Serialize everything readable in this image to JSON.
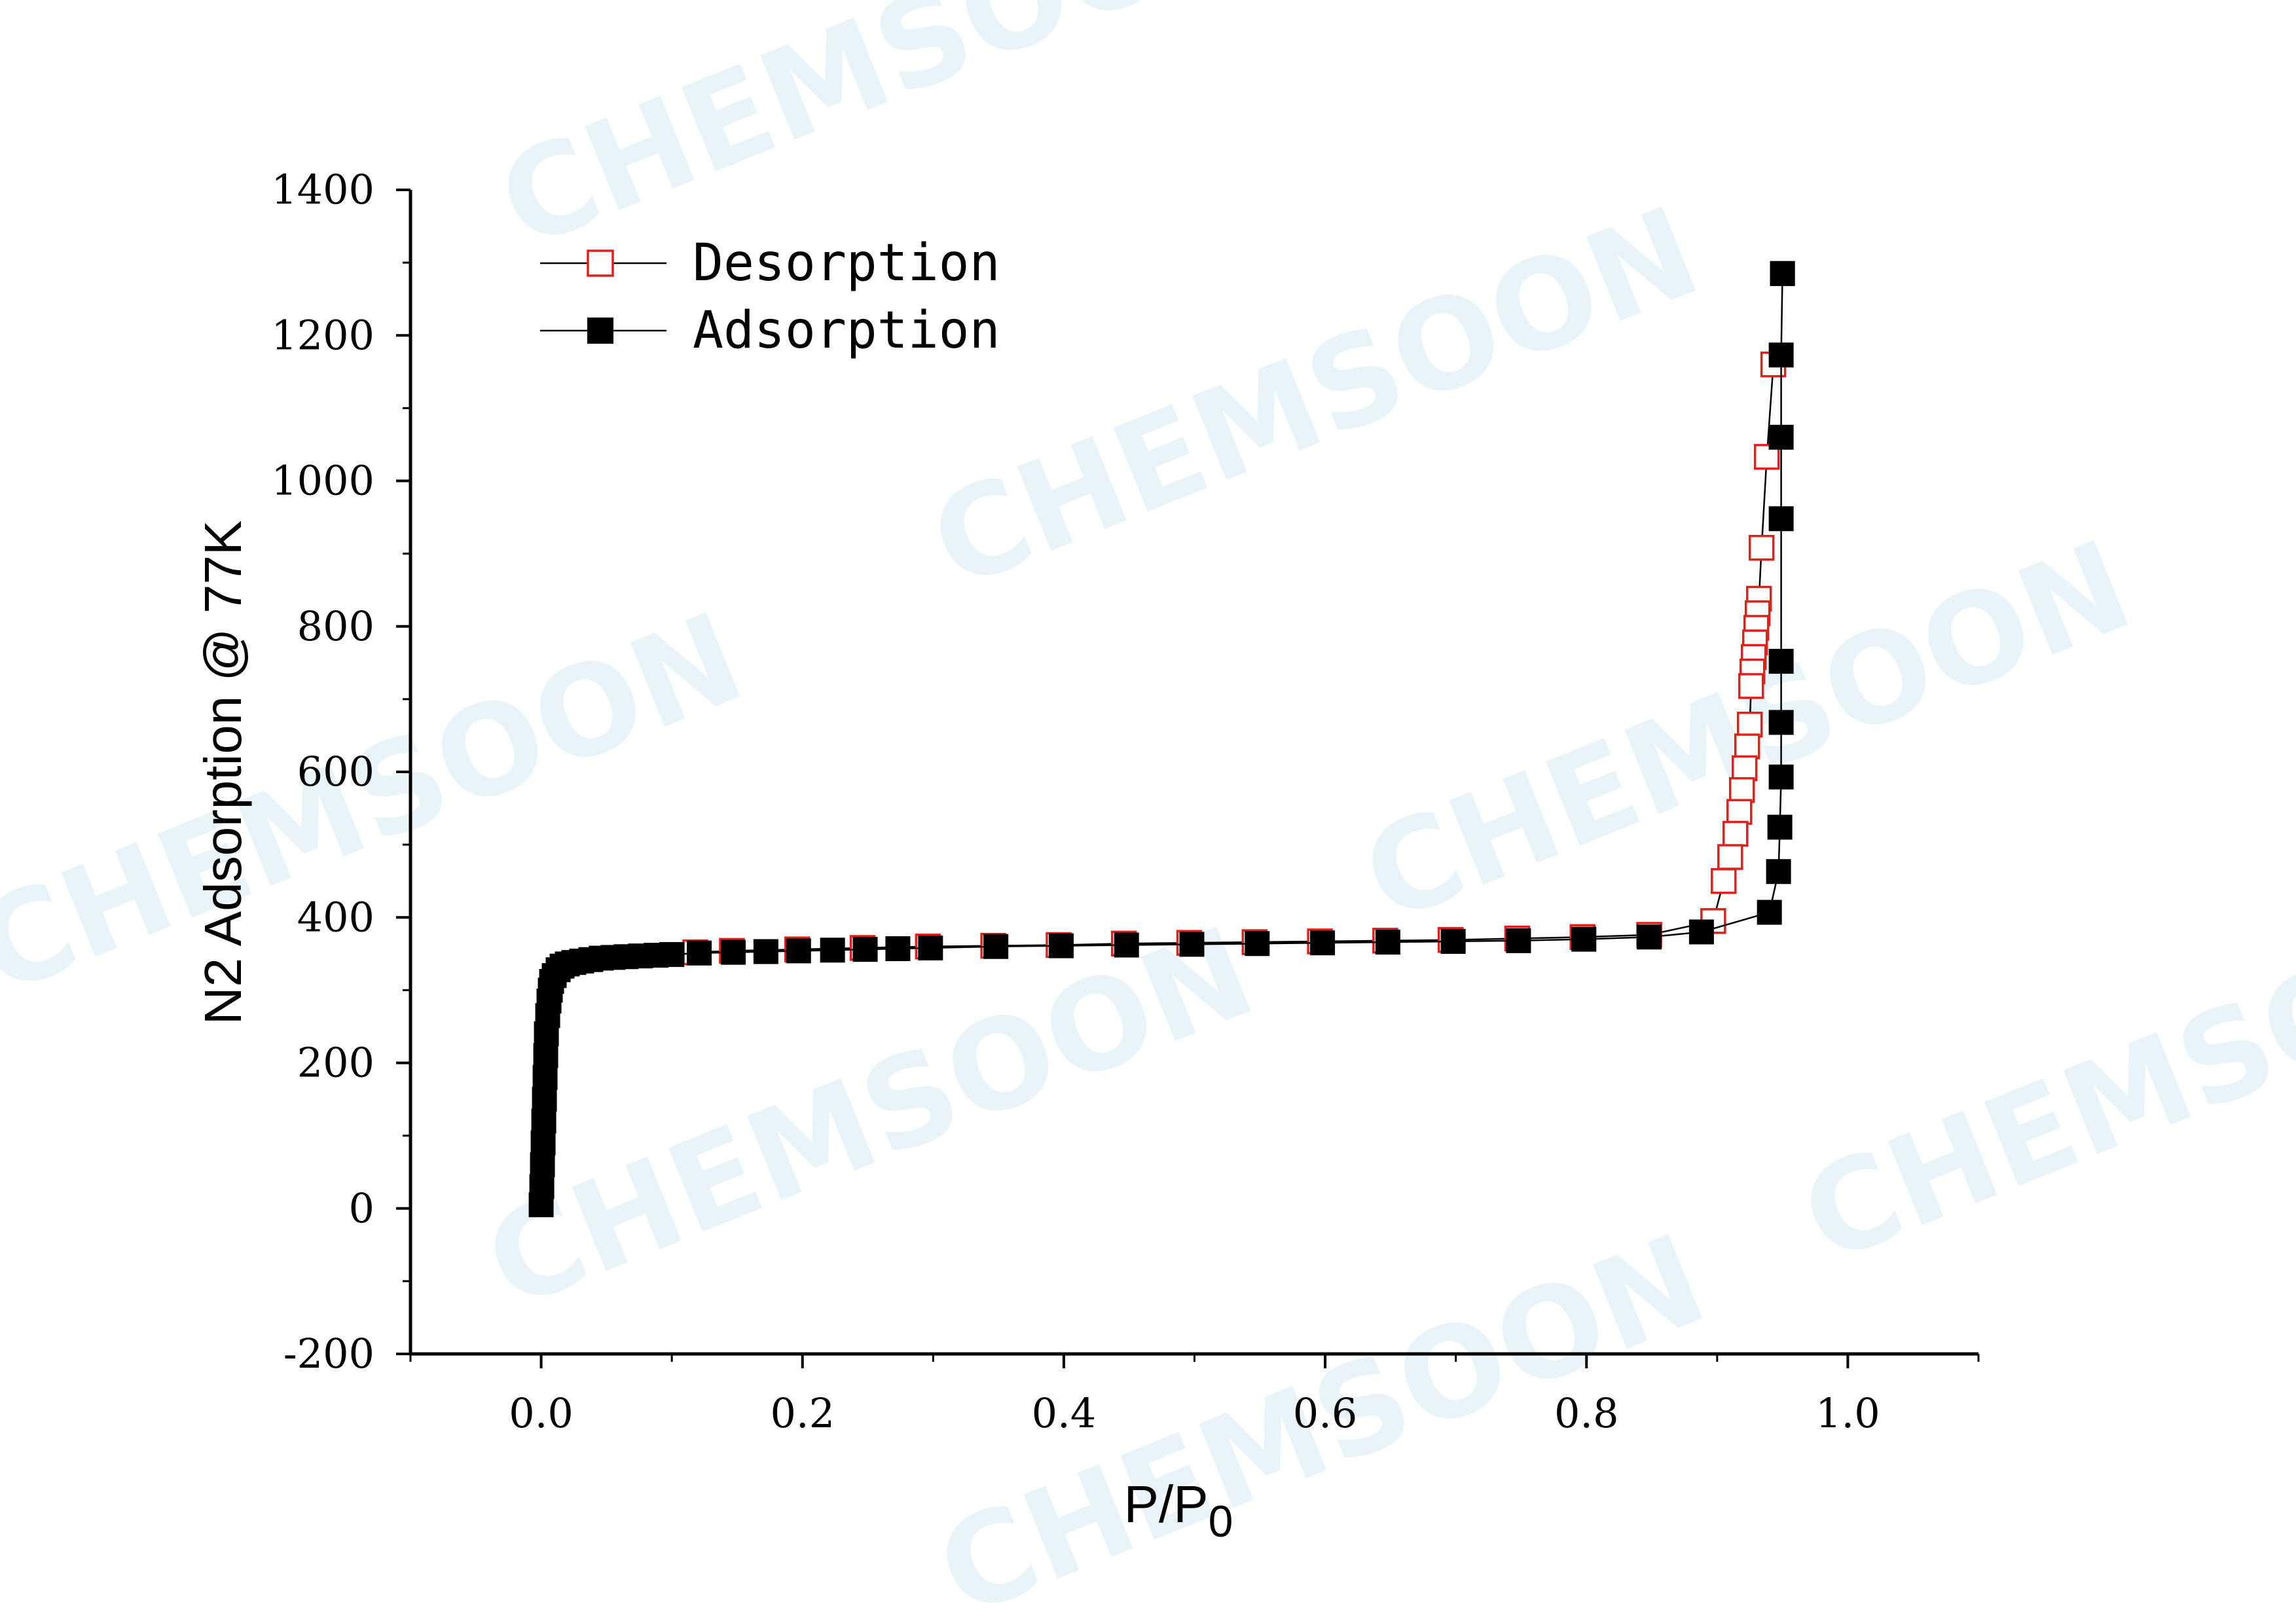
{
  "watermark": "CHEMSOON",
  "chart_data": {
    "type": "scatter",
    "xlabel": "P/P",
    "xlabel_sub": "0",
    "ylabel": "N2 Adsorption @ 77K",
    "xlim": [
      -0.1,
      1.1
    ],
    "ylim": [
      -200,
      1400
    ],
    "xticks": [
      0.0,
      0.2,
      0.4,
      0.6,
      0.8,
      1.0
    ],
    "xtick_labels": [
      "0.0",
      "0.2",
      "0.4",
      "0.6",
      "0.8",
      "1.0"
    ],
    "yticks": [
      -200,
      0,
      200,
      400,
      600,
      800,
      1000,
      1200,
      1400
    ],
    "ytick_labels": [
      "-200",
      "0",
      "200",
      "400",
      "600",
      "800",
      "1000",
      "1200",
      "1400"
    ],
    "grid": false,
    "legend_position": "top-left",
    "series": [
      {
        "name": "Desorption",
        "marker": "open-square",
        "color": "#e0201a",
        "line_color": "#000000",
        "x": [
          0.943,
          0.938,
          0.934,
          0.932,
          0.931,
          0.93,
          0.929,
          0.928,
          0.927,
          0.926,
          0.925,
          0.923,
          0.921,
          0.919,
          0.917,
          0.914,
          0.91,
          0.905,
          0.897,
          0.848,
          0.797,
          0.747,
          0.696,
          0.646,
          0.596,
          0.546,
          0.496,
          0.446,
          0.396,
          0.346,
          0.296,
          0.246,
          0.196,
          0.146,
          0.118
        ],
        "y": [
          1160,
          1033,
          908,
          838,
          818,
          798,
          778,
          758,
          738,
          718,
          665,
          635,
          605,
          575,
          545,
          515,
          483,
          450,
          395,
          376,
          373,
          371,
          369,
          368,
          367,
          366,
          365,
          364,
          362,
          361,
          360,
          358,
          356,
          354,
          352
        ]
      },
      {
        "name": "Adsorption",
        "marker": "filled-square",
        "color": "#000000",
        "line_color": "#000000",
        "x": [
          0.0,
          0.0005,
          0.001,
          0.0015,
          0.002,
          0.0025,
          0.003,
          0.0035,
          0.004,
          0.005,
          0.006,
          0.007,
          0.008,
          0.01,
          0.013,
          0.016,
          0.02,
          0.025,
          0.031,
          0.038,
          0.046,
          0.055,
          0.065,
          0.076,
          0.088,
          0.1,
          0.121,
          0.147,
          0.172,
          0.197,
          0.223,
          0.248,
          0.273,
          0.298,
          0.348,
          0.398,
          0.448,
          0.498,
          0.548,
          0.598,
          0.648,
          0.698,
          0.748,
          0.798,
          0.848,
          0.888,
          0.94,
          0.947,
          0.948,
          0.949,
          0.949,
          0.949,
          0.949,
          0.949,
          0.949,
          0.95,
          0.95
        ],
        "y": [
          5,
          30,
          60,
          90,
          120,
          150,
          180,
          210,
          240,
          265,
          285,
          300,
          312,
          320,
          328,
          333,
          336,
          338,
          340,
          342,
          344,
          345,
          346,
          347,
          348,
          349,
          351,
          352,
          353,
          354,
          355,
          356,
          357,
          358,
          360,
          361,
          362,
          363,
          364,
          365,
          366,
          367,
          368,
          370,
          373,
          380,
          407,
          463,
          524,
          593,
          668,
          752,
          948,
          1060,
          1173,
          1285,
          1285
        ]
      }
    ]
  }
}
